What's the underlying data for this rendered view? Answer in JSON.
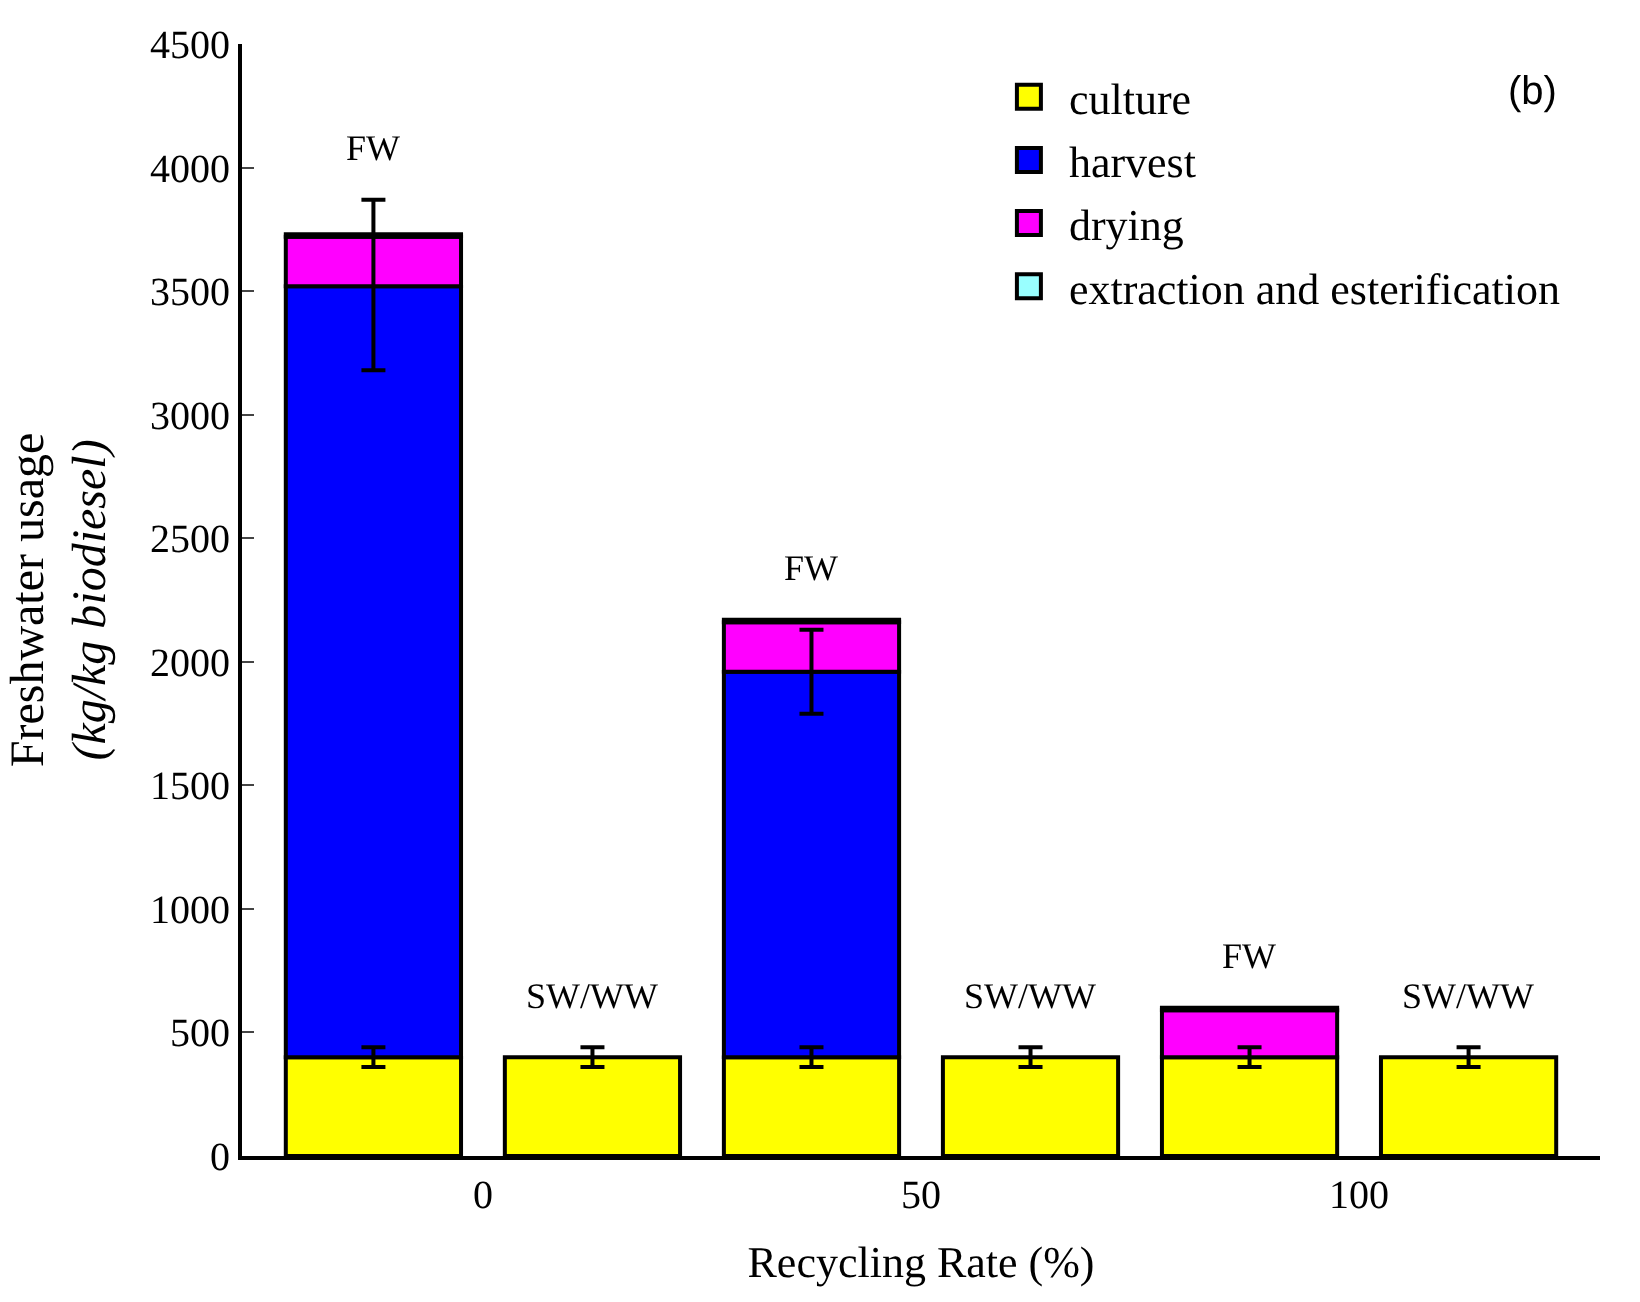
{
  "chart_data": {
    "type": "bar",
    "stacked": true,
    "xlabel": "Recycling Rate (%)",
    "ylabel": "Freshwater usage\n(kg/kg biodiesel)",
    "categories": [
      "0",
      null,
      "50",
      null,
      "100",
      null
    ],
    "series": [
      {
        "name": "culture",
        "color": "#ffff00",
        "values": [
          400,
          null,
          400,
          null,
          400,
          null
        ],
        "errors": [
          [
            360,
            440
          ],
          null,
          [
            360,
            440
          ],
          null,
          [
            360,
            440
          ],
          null
        ]
      },
      {
        "name": "harvest",
        "color": "#0000ff",
        "values": [
          3120,
          null,
          1560,
          null,
          null,
          null
        ],
        "errors": [
          [
            3180,
            3870
          ],
          null,
          [
            1790,
            2130
          ],
          null,
          null,
          null
        ]
      },
      {
        "name": "drying",
        "color": "#ff00ff",
        "values": [
          200,
          null,
          200,
          null,
          190,
          null
        ]
      },
      {
        "name": "extraction and esterification",
        "color": "#99ffff",
        "values": [
          10,
          null,
          10,
          null,
          10,
          null
        ]
      },
      {
        "color": "#ffff00",
        "values": [
          null,
          400,
          null,
          400,
          null,
          400
        ],
        "errors": [
          null,
          [
            360,
            440
          ],
          null,
          [
            360,
            440
          ],
          null,
          [
            360,
            440
          ]
        ]
      }
    ],
    "annotations": [
      "FW",
      "SW/WW",
      "FW",
      "SW/WW",
      "FW",
      "SW/WW",
      "(b)"
    ],
    "ylim": [
      0,
      4500
    ],
    "yticks": [
      0,
      500,
      1000,
      1500,
      2000,
      2500,
      3000,
      3500,
      4000,
      4500
    ],
    "legend": "top right"
  }
}
